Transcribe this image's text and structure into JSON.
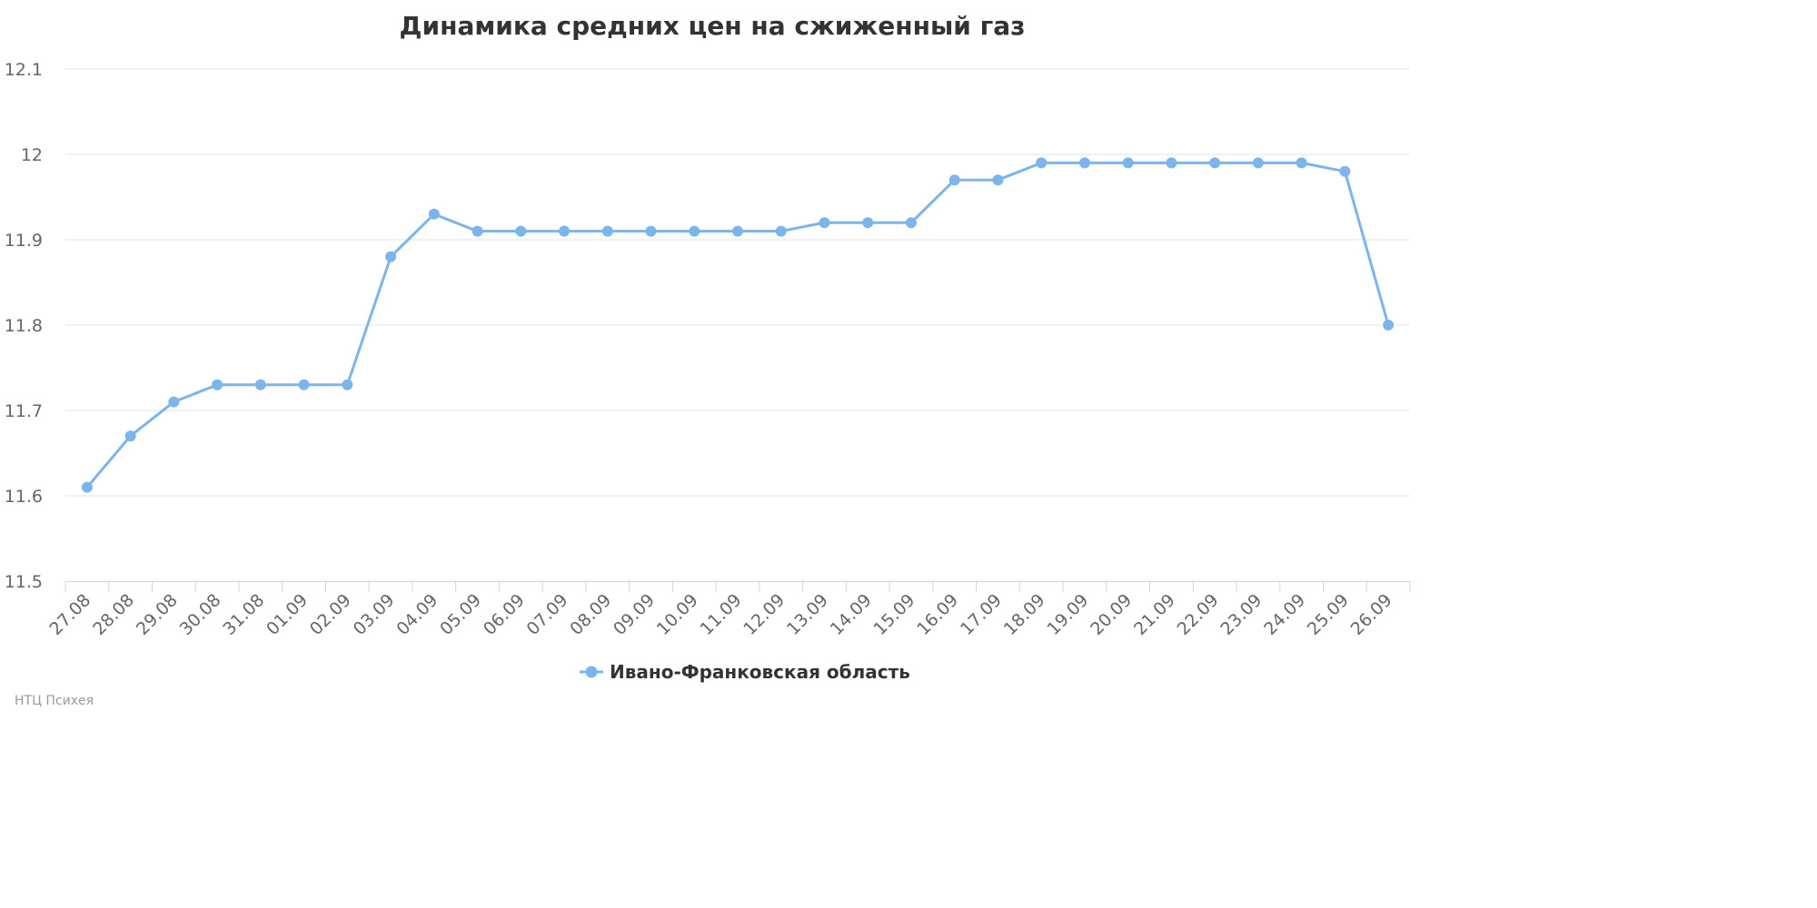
{
  "chart_data": {
    "type": "line",
    "title": "Динамика средних цен на сжиженный газ",
    "xlabel": "",
    "ylabel": "",
    "categories": [
      "27.08",
      "28.08",
      "29.08",
      "30.08",
      "31.08",
      "01.09",
      "02.09",
      "03.09",
      "04.09",
      "05.09",
      "06.09",
      "07.09",
      "08.09",
      "09.09",
      "10.09",
      "11.09",
      "12.09",
      "13.09",
      "14.09",
      "15.09",
      "16.09",
      "17.09",
      "18.09",
      "19.09",
      "20.09",
      "21.09",
      "22.09",
      "23.09",
      "24.09",
      "25.09",
      "26.09"
    ],
    "series": [
      {
        "name": "Ивано-Франковская область",
        "color": "#7cb5ec",
        "values": [
          11.61,
          11.67,
          11.71,
          11.73,
          11.73,
          11.73,
          11.73,
          11.88,
          11.93,
          11.91,
          11.91,
          11.91,
          11.91,
          11.91,
          11.91,
          11.91,
          11.91,
          11.92,
          11.92,
          11.92,
          11.97,
          11.97,
          11.99,
          11.99,
          11.99,
          11.99,
          11.99,
          11.99,
          11.99,
          11.98,
          11.8
        ]
      }
    ],
    "ylim": [
      11.5,
      12.1
    ],
    "yticks": [
      "11.5",
      "11.6",
      "11.7",
      "11.8",
      "11.9",
      "12",
      "12.1"
    ],
    "grid": true,
    "legend_position": "bottom-center"
  },
  "credit": "НТЦ Психея"
}
